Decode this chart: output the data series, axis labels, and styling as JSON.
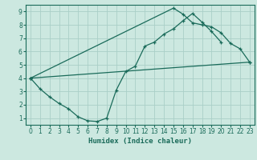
{
  "xlabel": "Humidex (Indice chaleur)",
  "bg_color": "#cce8e0",
  "grid_color": "#aacfc8",
  "line_color": "#1a6b5a",
  "xlim": [
    -0.5,
    23.5
  ],
  "ylim": [
    0.5,
    9.5
  ],
  "xticks": [
    0,
    1,
    2,
    3,
    4,
    5,
    6,
    7,
    8,
    9,
    10,
    11,
    12,
    13,
    14,
    15,
    16,
    17,
    18,
    19,
    20,
    21,
    22,
    23
  ],
  "yticks": [
    1,
    2,
    3,
    4,
    5,
    6,
    7,
    8,
    9
  ],
  "line1_x": [
    0,
    1,
    2,
    3,
    4,
    5,
    6,
    7,
    8,
    9,
    10,
    11,
    12,
    13,
    14,
    15,
    16,
    17,
    18,
    19,
    20
  ],
  "line1_y": [
    4.0,
    3.2,
    2.6,
    2.1,
    1.7,
    1.1,
    0.8,
    0.75,
    1.0,
    3.1,
    4.5,
    4.9,
    6.4,
    6.7,
    7.3,
    7.7,
    8.3,
    8.85,
    8.2,
    7.5,
    6.7
  ],
  "line2_x": [
    0,
    23
  ],
  "line2_y": [
    4.0,
    5.2
  ],
  "line3_x": [
    0,
    15,
    16,
    17,
    18,
    19,
    20,
    21,
    22,
    23
  ],
  "line3_y": [
    4.0,
    9.25,
    8.8,
    8.15,
    8.0,
    7.85,
    7.4,
    6.6,
    6.2,
    5.2
  ]
}
